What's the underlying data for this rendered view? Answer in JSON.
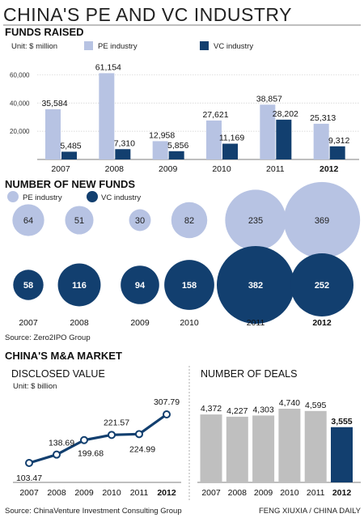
{
  "title": "CHINA'S PE AND VC INDUSTRY",
  "colors": {
    "pe": "#b7c3e3",
    "vc": "#123f6f",
    "ma_bar": "#bfbfbf",
    "ma_last": "#123f6f"
  },
  "funds_raised": {
    "heading": "FUNDS RAISED",
    "unit": "Unit: $ million",
    "legend_pe": "PE industry",
    "legend_vc": "VC industry"
  },
  "new_funds": {
    "heading": "NUMBER OF NEW FUNDS",
    "legend_pe": "PE industry",
    "legend_vc": "VC industry"
  },
  "source1": "Source: Zero2IPO Group",
  "ma": {
    "heading": "CHINA'S M&A MARKET",
    "disclosed_heading": "DISCLOSED VALUE",
    "disclosed_unit": "Unit: $ billion",
    "deals_heading": "NUMBER OF DEALS"
  },
  "source2": "Source: ChinaVenture Investment Consulting Group",
  "credit": "FENG XIUXIA / CHINA DAILY",
  "chart_data": [
    {
      "type": "bar",
      "title": "FUNDS RAISED",
      "categories": [
        "2007",
        "2008",
        "2009",
        "2010",
        "2011",
        "2012"
      ],
      "series": [
        {
          "name": "PE industry",
          "values": [
            35584,
            61154,
            12958,
            27621,
            38857,
            25313
          ]
        },
        {
          "name": "VC industry",
          "values": [
            5485,
            7310,
            5856,
            11169,
            28202,
            9312
          ]
        }
      ],
      "yticks": [
        "20,000",
        "40,000",
        "60,000"
      ],
      "ylim": [
        0,
        70000
      ],
      "grid": true,
      "value_labels": {
        "pe": [
          "35,584",
          "61,154",
          "12,958",
          "27,621",
          "38,857",
          "25,313"
        ],
        "vc": [
          "5,485",
          "7,310",
          "5,856",
          "11,169",
          "28,202",
          "9,312"
        ]
      }
    },
    {
      "type": "scatter",
      "title": "NUMBER OF NEW FUNDS",
      "categories": [
        "2007",
        "2008",
        "2009",
        "2010",
        "2011",
        "2012"
      ],
      "series": [
        {
          "name": "PE industry",
          "values": [
            64,
            51,
            30,
            82,
            235,
            369
          ]
        },
        {
          "name": "VC industry",
          "values": [
            58,
            116,
            94,
            158,
            382,
            252
          ]
        }
      ]
    },
    {
      "type": "line",
      "title": "DISCLOSED VALUE",
      "categories": [
        "2007",
        "2008",
        "2009",
        "2010",
        "2011",
        "2012"
      ],
      "values": [
        103.47,
        138.69,
        199.68,
        221.57,
        224.99,
        307.79
      ],
      "value_labels": [
        "103.47",
        "138.69",
        "199.68",
        "221.57",
        "224.99",
        "307.79"
      ],
      "ylim": [
        80,
        320
      ]
    },
    {
      "type": "bar",
      "title": "NUMBER OF DEALS",
      "categories": [
        "2007",
        "2008",
        "2009",
        "2010",
        "2011",
        "2012"
      ],
      "values": [
        4372,
        4227,
        4303,
        4740,
        4595,
        3555
      ],
      "value_labels": [
        "4,372",
        "4,227",
        "4,303",
        "4,740",
        "4,595",
        "3,555"
      ],
      "ylim": [
        0,
        5000
      ]
    }
  ]
}
